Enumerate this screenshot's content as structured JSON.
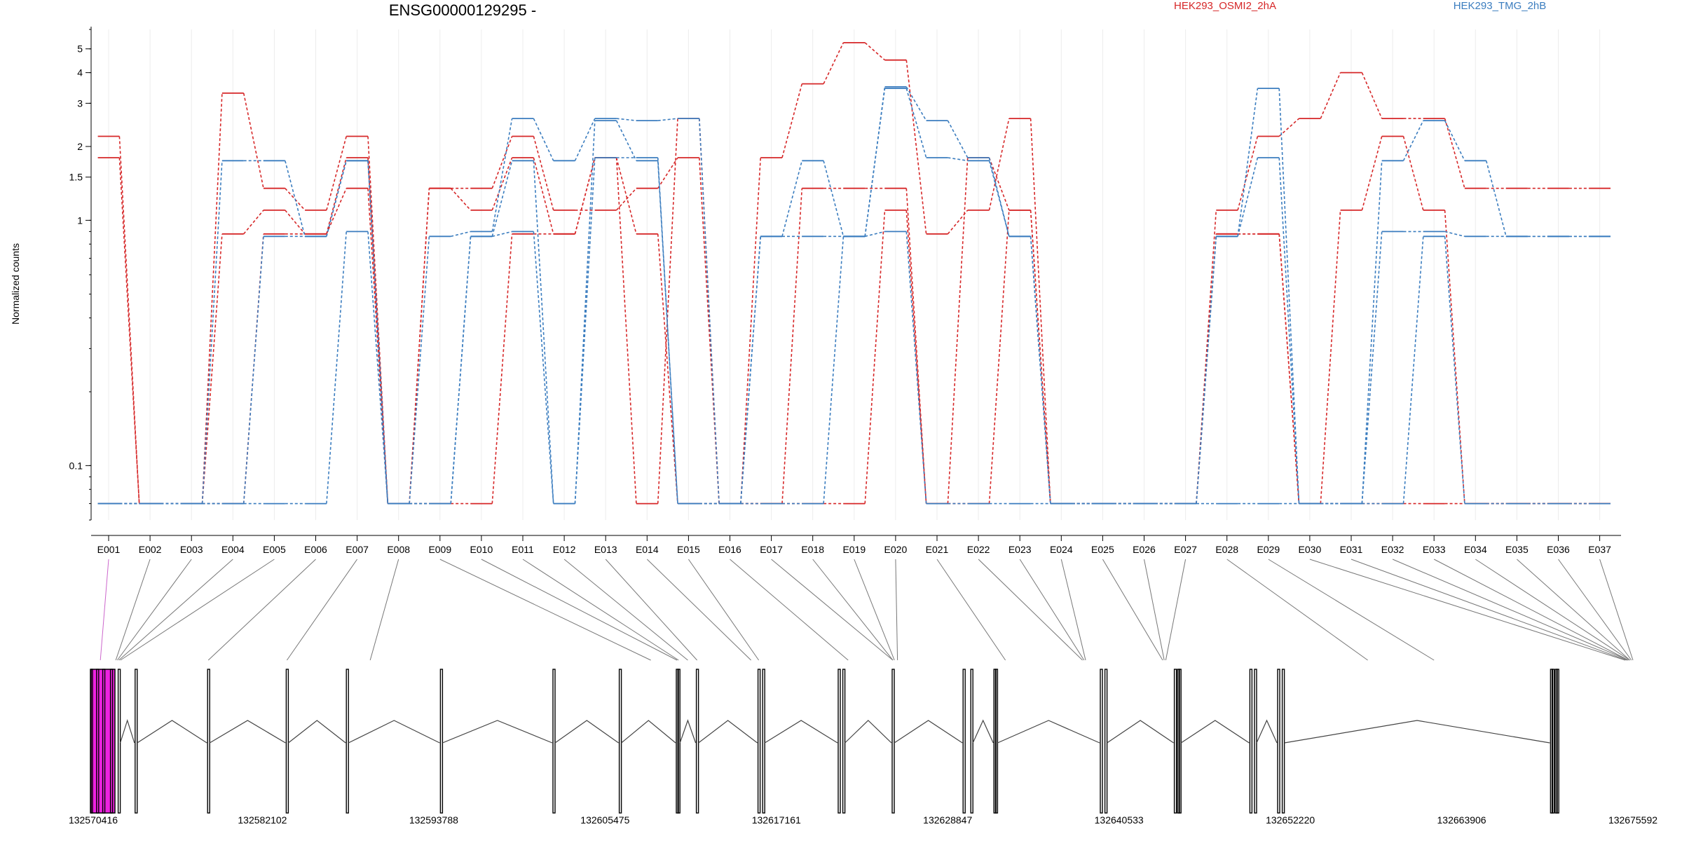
{
  "chart_data": {
    "type": "line",
    "title": "ENSG00000129295 -",
    "ylabel": "Normalized counts",
    "yscale": "log",
    "yticks": [
      "0.1",
      "1",
      "1.5",
      "2",
      "3",
      "4",
      "5"
    ],
    "ytick_values": [
      0.1,
      1,
      1.5,
      2,
      3,
      4,
      5
    ],
    "ylim": [
      0.06,
      6
    ],
    "grid": true,
    "legend": "top",
    "categories": [
      "E001",
      "E002",
      "E003",
      "E004",
      "E005",
      "E006",
      "E007",
      "E008",
      "E009",
      "E010",
      "E011",
      "E012",
      "E013",
      "E014",
      "E015",
      "E016",
      "E017",
      "E018",
      "E019",
      "E020",
      "E021",
      "E022",
      "E023",
      "E024",
      "E025",
      "E026",
      "E027",
      "E028",
      "E029",
      "E030",
      "E031",
      "E032",
      "E033",
      "E034",
      "E035",
      "E036",
      "E037"
    ],
    "series": [
      {
        "name": "HEK293_OSMI2_2hA",
        "color": "#d62728",
        "replicates": [
          [
            2.2,
            0.07,
            0.07,
            3.3,
            1.35,
            1.1,
            2.2,
            0.07,
            1.35,
            1.35,
            2.2,
            1.1,
            1.1,
            1.35,
            1.8,
            0.07,
            1.8,
            3.6,
            5.3,
            4.5,
            0.88,
            1.1,
            2.6,
            0.07,
            0.07,
            0.07,
            0.07,
            1.1,
            2.2,
            2.6,
            4.0,
            2.6,
            2.6,
            1.35,
            1.35,
            1.35,
            1.35
          ],
          [
            1.8,
            0.07,
            0.07,
            0.88,
            1.1,
            0.88,
            1.8,
            0.07,
            1.35,
            1.1,
            1.8,
            0.88,
            1.8,
            0.88,
            0.07,
            0.07,
            0.07,
            1.35,
            1.35,
            1.35,
            0.07,
            1.8,
            1.1,
            0.07,
            0.07,
            0.07,
            0.07,
            0.88,
            0.88,
            0.07,
            1.1,
            2.2,
            1.1,
            0.07,
            0.07,
            0.07,
            0.07
          ],
          [
            0.07,
            0.07,
            0.07,
            0.07,
            0.88,
            0.88,
            1.35,
            0.07,
            0.07,
            0.07,
            0.88,
            0.88,
            1.8,
            0.07,
            2.6,
            0.07,
            0.07,
            0.07,
            0.07,
            1.1,
            0.07,
            0.07,
            1.1,
            0.07,
            0.07,
            0.07,
            0.07,
            0.88,
            0.88,
            0.07,
            0.07,
            0.07,
            0.07,
            0.07,
            0.07,
            0.07,
            0.07
          ]
        ]
      },
      {
        "name": "HEK293_TMG_2hB",
        "color": "#3b7dbf",
        "replicates": [
          [
            0.07,
            0.07,
            0.07,
            1.75,
            1.75,
            0.86,
            1.75,
            0.07,
            0.86,
            0.9,
            2.6,
            1.75,
            2.6,
            2.55,
            2.6,
            0.07,
            0.86,
            1.75,
            0.86,
            3.5,
            2.55,
            1.8,
            0.86,
            0.07,
            0.07,
            0.07,
            0.07,
            0.86,
            3.45,
            0.07,
            0.07,
            1.75,
            2.55,
            1.75,
            0.86,
            0.86,
            0.86
          ],
          [
            0.07,
            0.07,
            0.07,
            0.07,
            0.86,
            0.86,
            1.75,
            0.07,
            0.07,
            0.86,
            1.75,
            0.07,
            1.8,
            1.8,
            0.07,
            0.07,
            0.86,
            0.86,
            0.86,
            3.45,
            1.8,
            1.75,
            0.86,
            0.07,
            0.07,
            0.07,
            0.07,
            0.86,
            1.8,
            0.07,
            0.07,
            0.9,
            0.9,
            0.86,
            0.86,
            0.86,
            0.86
          ],
          [
            0.07,
            0.07,
            0.07,
            0.07,
            0.07,
            0.07,
            0.9,
            0.07,
            0.07,
            0.86,
            0.9,
            0.07,
            2.55,
            1.75,
            0.07,
            0.07,
            0.07,
            0.07,
            0.86,
            0.9,
            0.07,
            0.07,
            0.07,
            0.07,
            0.07,
            0.07,
            0.07,
            0.07,
            0.07,
            0.07,
            0.07,
            0.07,
            0.86,
            0.07,
            0.07,
            0.07,
            0.07
          ]
        ]
      }
    ],
    "gene_model": {
      "coordinates": [
        "132570416",
        "132582102",
        "132593788",
        "132605475",
        "132617161",
        "132628847",
        "132640533",
        "132652220",
        "132663906",
        "132675592"
      ],
      "highlight_color": "#ee22e0",
      "exon_genomic_positions": [
        0.0,
        0.004,
        0.008,
        0.013,
        0.018,
        0.029,
        0.076,
        0.127,
        0.166,
        0.227,
        0.3,
        0.343,
        0.38,
        0.381,
        0.393,
        0.433,
        0.436,
        0.485,
        0.488,
        0.52,
        0.566,
        0.571,
        0.586,
        0.587,
        0.655,
        0.658,
        0.703,
        0.705,
        0.706,
        0.752,
        0.755,
        0.77,
        0.773,
        0.947,
        0.948,
        0.95,
        0.951
      ],
      "exon_ids_by_connector_target": [
        0.006,
        0.016,
        0.017,
        0.018,
        0.019,
        0.076,
        0.127,
        0.181,
        0.363,
        0.38,
        0.381,
        0.387,
        0.393,
        0.428,
        0.433,
        0.491,
        0.52,
        0.52,
        0.521,
        0.523,
        0.593,
        0.643,
        0.644,
        0.645,
        0.695,
        0.696,
        0.697,
        0.828,
        0.871,
        0.995,
        0.996,
        0.997,
        0.997,
        0.998,
        0.998,
        0.999,
        1.0
      ]
    }
  }
}
